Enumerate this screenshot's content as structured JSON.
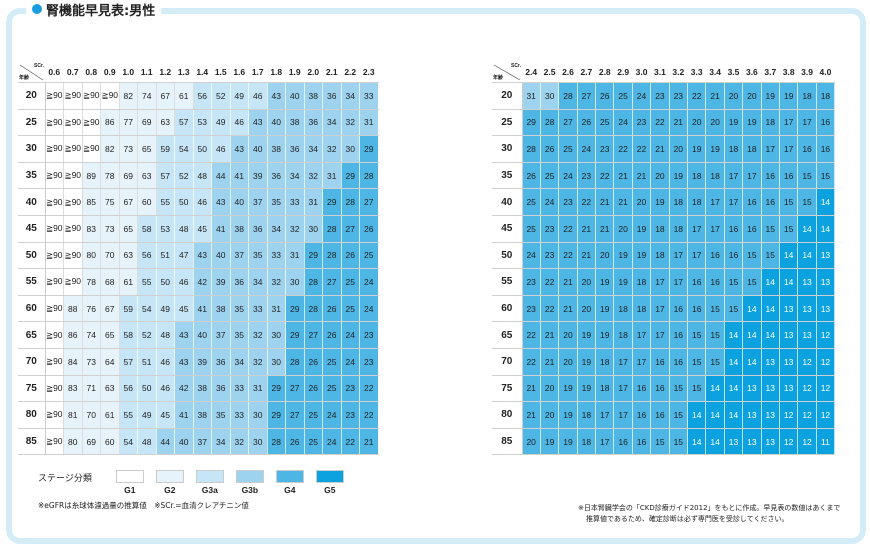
{
  "title": "腎機能早見表:男性",
  "corner": {
    "scr": "SCr.",
    "age": "年齢"
  },
  "stage_colors": {
    "G1": "#ffffff",
    "G2": "#e6f3fb",
    "G3a": "#c6e5f6",
    "G3b": "#9ed3ef",
    "G4": "#4db6e5",
    "G5": "#0ba2df"
  },
  "ages": [
    "20",
    "25",
    "30",
    "35",
    "40",
    "45",
    "50",
    "55",
    "60",
    "65",
    "70",
    "75",
    "80",
    "85"
  ],
  "left": {
    "scr": [
      "0.6",
      "0.7",
      "0.8",
      "0.9",
      "1.0",
      "1.1",
      "1.2",
      "1.3",
      "1.4",
      "1.5",
      "1.6",
      "1.7",
      "1.8",
      "1.9",
      "2.0",
      "2.1",
      "2.2",
      "2.3"
    ],
    "rows": [
      [
        "≧90",
        "≧90",
        "≧90",
        "≧90",
        "82",
        "74",
        "67",
        "61",
        "56",
        "52",
        "49",
        "46",
        "43",
        "40",
        "38",
        "36",
        "34",
        "33"
      ],
      [
        "≧90",
        "≧90",
        "≧90",
        "86",
        "77",
        "69",
        "63",
        "57",
        "53",
        "49",
        "46",
        "43",
        "40",
        "38",
        "36",
        "34",
        "32",
        "31"
      ],
      [
        "≧90",
        "≧90",
        "≧90",
        "82",
        "73",
        "65",
        "59",
        "54",
        "50",
        "46",
        "43",
        "40",
        "38",
        "36",
        "34",
        "32",
        "30",
        "29"
      ],
      [
        "≧90",
        "≧90",
        "89",
        "78",
        "69",
        "63",
        "57",
        "52",
        "48",
        "44",
        "41",
        "39",
        "36",
        "34",
        "32",
        "31",
        "29",
        "28"
      ],
      [
        "≧90",
        "≧90",
        "85",
        "75",
        "67",
        "60",
        "55",
        "50",
        "46",
        "43",
        "40",
        "37",
        "35",
        "33",
        "31",
        "29",
        "28",
        "27"
      ],
      [
        "≧90",
        "≧90",
        "83",
        "73",
        "65",
        "58",
        "53",
        "48",
        "45",
        "41",
        "38",
        "36",
        "34",
        "32",
        "30",
        "28",
        "27",
        "26"
      ],
      [
        "≧90",
        "≧90",
        "80",
        "70",
        "63",
        "56",
        "51",
        "47",
        "43",
        "40",
        "37",
        "35",
        "33",
        "31",
        "29",
        "28",
        "26",
        "25"
      ],
      [
        "≧90",
        "≧90",
        "78",
        "68",
        "61",
        "55",
        "50",
        "46",
        "42",
        "39",
        "36",
        "34",
        "32",
        "30",
        "28",
        "27",
        "25",
        "24"
      ],
      [
        "≧90",
        "88",
        "76",
        "67",
        "59",
        "54",
        "49",
        "45",
        "41",
        "38",
        "35",
        "33",
        "31",
        "29",
        "28",
        "26",
        "25",
        "24"
      ],
      [
        "≧90",
        "86",
        "74",
        "65",
        "58",
        "52",
        "48",
        "43",
        "40",
        "37",
        "35",
        "32",
        "30",
        "29",
        "27",
        "26",
        "24",
        "23"
      ],
      [
        "≧90",
        "84",
        "73",
        "64",
        "57",
        "51",
        "46",
        "43",
        "39",
        "36",
        "34",
        "32",
        "30",
        "28",
        "26",
        "25",
        "24",
        "23"
      ],
      [
        "≧90",
        "83",
        "71",
        "63",
        "56",
        "50",
        "46",
        "42",
        "38",
        "36",
        "33",
        "31",
        "29",
        "27",
        "26",
        "25",
        "23",
        "22"
      ],
      [
        "≧90",
        "81",
        "70",
        "61",
        "55",
        "49",
        "45",
        "41",
        "38",
        "35",
        "33",
        "30",
        "29",
        "27",
        "25",
        "24",
        "23",
        "22"
      ],
      [
        "≧90",
        "80",
        "69",
        "60",
        "54",
        "48",
        "44",
        "40",
        "37",
        "34",
        "32",
        "30",
        "28",
        "26",
        "25",
        "24",
        "22",
        "21"
      ]
    ]
  },
  "right": {
    "scr": [
      "2.4",
      "2.5",
      "2.6",
      "2.7",
      "2.8",
      "2.9",
      "3.0",
      "3.1",
      "3.2",
      "3.3",
      "3.4",
      "3.5",
      "3.6",
      "3.7",
      "3.8",
      "3.9",
      "4.0"
    ],
    "rows": [
      [
        "31",
        "30",
        "28",
        "27",
        "26",
        "25",
        "24",
        "23",
        "23",
        "22",
        "21",
        "20",
        "20",
        "19",
        "19",
        "18",
        "18"
      ],
      [
        "29",
        "28",
        "27",
        "26",
        "25",
        "24",
        "23",
        "22",
        "21",
        "20",
        "20",
        "19",
        "19",
        "18",
        "17",
        "17",
        "16"
      ],
      [
        "28",
        "26",
        "25",
        "24",
        "23",
        "22",
        "22",
        "21",
        "20",
        "19",
        "19",
        "18",
        "18",
        "17",
        "17",
        "16",
        "16"
      ],
      [
        "26",
        "25",
        "24",
        "23",
        "22",
        "21",
        "21",
        "20",
        "19",
        "18",
        "18",
        "17",
        "17",
        "16",
        "16",
        "15",
        "15"
      ],
      [
        "25",
        "24",
        "23",
        "22",
        "21",
        "21",
        "20",
        "19",
        "18",
        "18",
        "17",
        "17",
        "16",
        "16",
        "15",
        "15",
        "14"
      ],
      [
        "25",
        "23",
        "22",
        "21",
        "21",
        "20",
        "19",
        "18",
        "18",
        "17",
        "17",
        "16",
        "16",
        "15",
        "15",
        "14",
        "14"
      ],
      [
        "24",
        "23",
        "22",
        "21",
        "20",
        "19",
        "19",
        "18",
        "17",
        "17",
        "16",
        "16",
        "15",
        "15",
        "14",
        "14",
        "13"
      ],
      [
        "23",
        "22",
        "21",
        "20",
        "19",
        "19",
        "18",
        "17",
        "17",
        "16",
        "16",
        "15",
        "15",
        "14",
        "14",
        "13",
        "13"
      ],
      [
        "23",
        "22",
        "21",
        "20",
        "19",
        "18",
        "18",
        "17",
        "16",
        "16",
        "15",
        "15",
        "14",
        "14",
        "13",
        "13",
        "13"
      ],
      [
        "22",
        "21",
        "20",
        "19",
        "19",
        "18",
        "17",
        "17",
        "16",
        "15",
        "15",
        "14",
        "14",
        "14",
        "13",
        "13",
        "12"
      ],
      [
        "22",
        "21",
        "20",
        "19",
        "18",
        "17",
        "17",
        "16",
        "16",
        "15",
        "15",
        "14",
        "14",
        "13",
        "13",
        "12",
        "12"
      ],
      [
        "21",
        "20",
        "19",
        "19",
        "18",
        "17",
        "16",
        "16",
        "15",
        "15",
        "14",
        "14",
        "13",
        "13",
        "13",
        "12",
        "12"
      ],
      [
        "21",
        "20",
        "19",
        "18",
        "17",
        "17",
        "16",
        "16",
        "15",
        "14",
        "14",
        "14",
        "13",
        "13",
        "12",
        "12",
        "12"
      ],
      [
        "20",
        "19",
        "19",
        "18",
        "17",
        "16",
        "16",
        "15",
        "15",
        "14",
        "14",
        "13",
        "13",
        "13",
        "12",
        "12",
        "11"
      ]
    ]
  },
  "legend": {
    "label": "ステージ分類",
    "stages": [
      "G1",
      "G2",
      "G3a",
      "G3b",
      "G4",
      "G5"
    ]
  },
  "notes": {
    "left": "※eGFRは糸球体濾過量の推算値　※SCr.=血清クレアチニン値",
    "right_1": "※日本腎臓学会の「CKD診療ガイド2012」をもとに作成。早見表の数値はあくまで",
    "right_2": "推算値であるため、確定診断は必ず専門医を受診してください。"
  }
}
